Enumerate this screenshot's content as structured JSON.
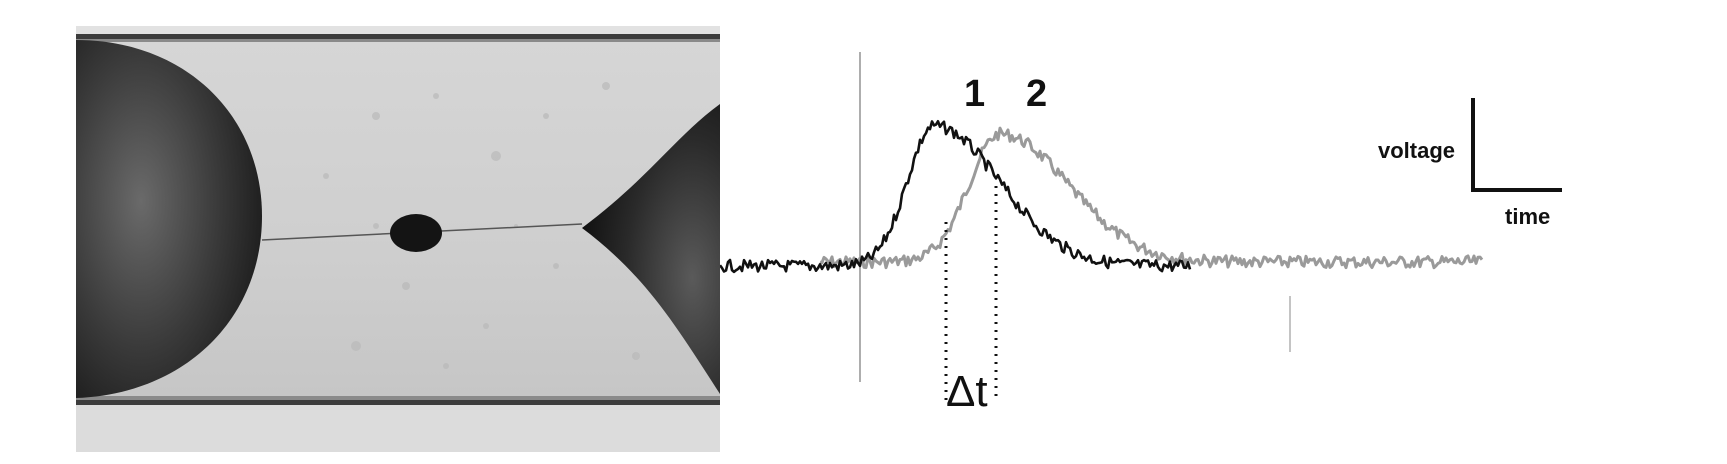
{
  "figure": {
    "photo": {
      "icon": "microchannel-droplet-photo"
    },
    "plot": {
      "trace_labels": [
        "1",
        "2"
      ],
      "delta_label": "Δt",
      "scale_bar": {
        "y_label": "voltage",
        "x_label": "time"
      },
      "colors": {
        "trace_1": "#111111",
        "trace_2": "#9a9a9a"
      }
    }
  }
}
